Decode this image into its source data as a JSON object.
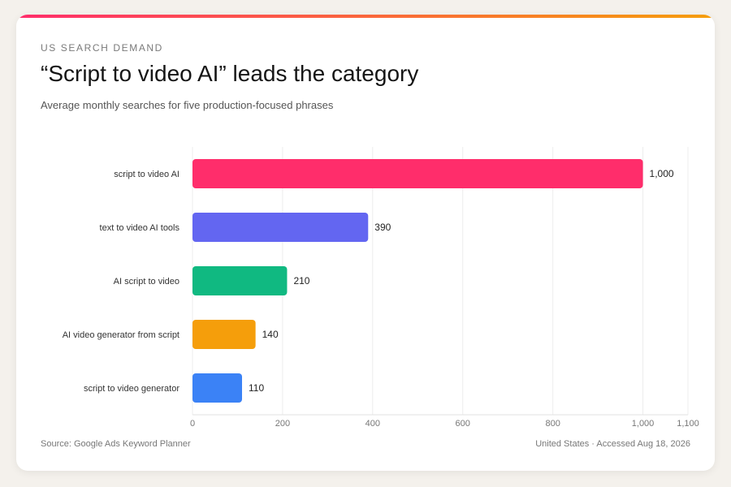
{
  "colors": {
    "accent_start": "#ff2d6b",
    "accent_end": "#f59e0b",
    "grid": "#ededed"
  },
  "header": {
    "eyebrow": "US SEARCH DEMAND",
    "title": "“Script to video AI” leads the category",
    "subtitle": "Average monthly searches for five production-focused phrases"
  },
  "footer": {
    "source": "Source: Google Ads Keyword Planner",
    "note": "United States · Accessed Aug 18, 2026"
  },
  "chart_data": {
    "type": "bar",
    "orientation": "horizontal",
    "categories": [
      "script to video AI",
      "text to video AI tools",
      "AI script to video",
      "AI video generator from script",
      "script to video generator"
    ],
    "values": [
      1000,
      390,
      210,
      140,
      110
    ],
    "value_labels": [
      "1,000",
      "390",
      "210",
      "140",
      "110"
    ],
    "bar_colors": [
      "#ff2d6b",
      "#6366f1",
      "#10b981",
      "#f59e0b",
      "#3b82f6"
    ],
    "xlim": [
      0,
      1100
    ],
    "x_ticks": [
      0,
      200,
      400,
      600,
      800,
      1000,
      1100
    ],
    "x_tick_labels": [
      "0",
      "200",
      "400",
      "600",
      "800",
      "1,000",
      "1,100"
    ],
    "grid": true,
    "xlabel": "",
    "ylabel": ""
  }
}
